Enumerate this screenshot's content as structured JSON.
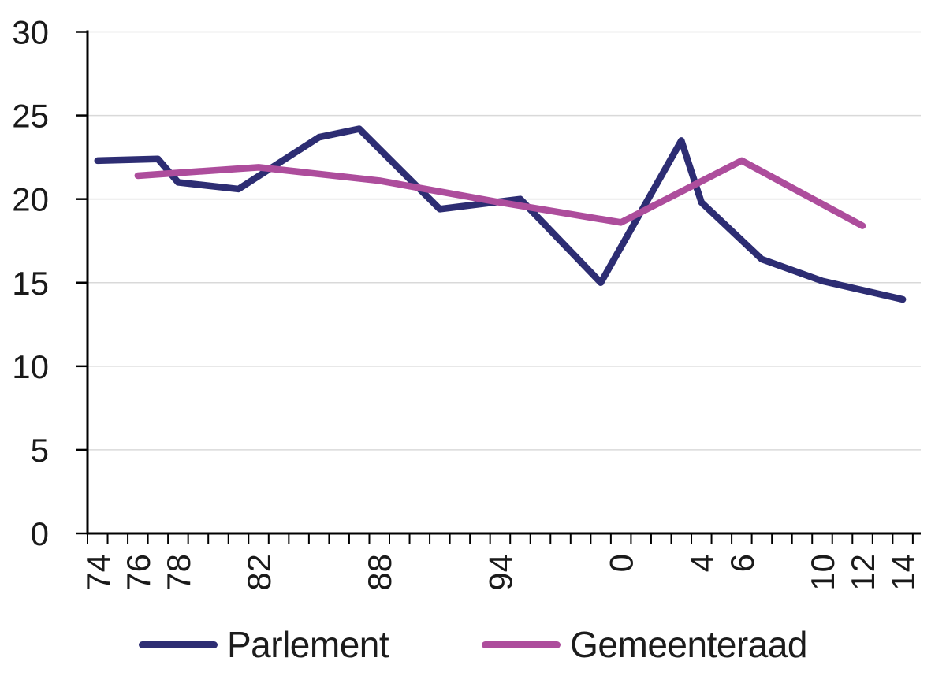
{
  "colors": {
    "background": "#ffffff",
    "grid": "#d9d9d9",
    "axis": "#000000",
    "text": "#1a1a1a",
    "parlement_line": "#2d2d73",
    "gemeenteraad_line": "#ad4d9c"
  },
  "chart_data": {
    "type": "line",
    "title": "",
    "xlabel": "",
    "ylabel": "",
    "ylim": [
      0,
      30
    ],
    "yticks": [
      0,
      5,
      10,
      15,
      20,
      25,
      30
    ],
    "x_years_range": [
      1974,
      2014
    ],
    "x_minor_ticks": "one tick per year from 1974 to 2015",
    "grid": "horizontal gridlines every 5 units",
    "legend_position": "bottom center",
    "xtick_labels": [
      {
        "year": 1974,
        "label": "74"
      },
      {
        "year": 1976,
        "label": "76"
      },
      {
        "year": 1978,
        "label": "78"
      },
      {
        "year": 1982,
        "label": "82"
      },
      {
        "year": 1988,
        "label": "88"
      },
      {
        "year": 1994,
        "label": "94"
      },
      {
        "year": 2000,
        "label": "0"
      },
      {
        "year": 2004,
        "label": "4"
      },
      {
        "year": 2006,
        "label": "6"
      },
      {
        "year": 2010,
        "label": "10"
      },
      {
        "year": 2012,
        "label": "12"
      },
      {
        "year": 2014,
        "label": "14"
      }
    ],
    "series": [
      {
        "name": "Parlement",
        "color": "#2d2d73",
        "points": [
          [
            1974,
            22.3
          ],
          [
            1977,
            22.4
          ],
          [
            1978,
            21.0
          ],
          [
            1981,
            20.6
          ],
          [
            1985,
            23.7
          ],
          [
            1987,
            24.2
          ],
          [
            1991,
            19.4
          ],
          [
            1995,
            20.0
          ],
          [
            1999,
            15.0
          ],
          [
            2003,
            23.5
          ],
          [
            2004,
            19.8
          ],
          [
            2007,
            16.4
          ],
          [
            2010,
            15.1
          ],
          [
            2014,
            14.0
          ]
        ]
      },
      {
        "name": "Gemeenteraad",
        "color": "#ad4d9c",
        "points": [
          [
            1976,
            21.4
          ],
          [
            1982,
            21.9
          ],
          [
            1988,
            21.1
          ],
          [
            1994,
            19.8
          ],
          [
            2000,
            18.6
          ],
          [
            2006,
            22.3
          ],
          [
            2012,
            18.4
          ]
        ]
      }
    ]
  }
}
